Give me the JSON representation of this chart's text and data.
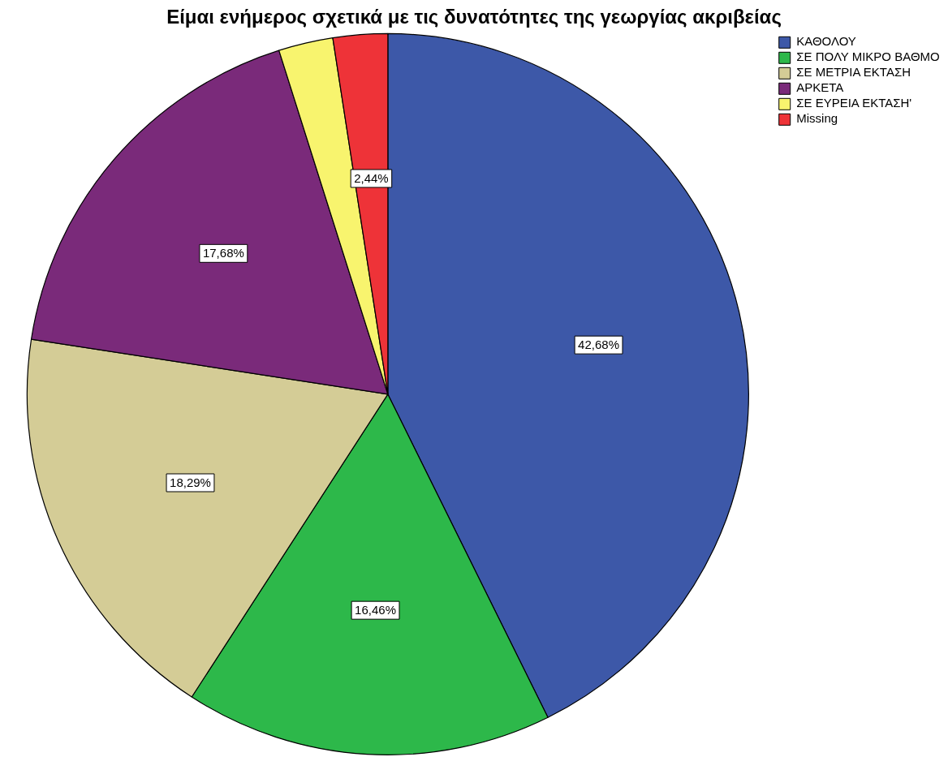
{
  "chart_data": {
    "type": "pie",
    "title": "Είμαι ενήμερος σχετικά με τις δυνατότητες της γεωργίας ακριβείας",
    "categories": [
      "ΚΑΘΟΛΟΥ",
      "ΣΕ ΠΟΛΥ ΜΙΚΡΟ ΒΑΘΜΟ",
      "ΣΕ ΜΕΤΡΙΑ ΕΚΤΑΣΗ",
      "ΑΡΚΕΤΑ",
      "ΣΕ ΕΥΡΕΙΑ ΕΚΤΑΣΗ'",
      "Missing"
    ],
    "values": [
      42.68,
      16.46,
      18.29,
      17.68,
      2.44,
      2.44
    ],
    "value_labels": [
      "42,68%",
      "16,46%",
      "18,29%",
      "17,68%",
      null,
      "2,44%"
    ],
    "colors": [
      "#3d58a8",
      "#2db84a",
      "#d4cc96",
      "#7a2a7a",
      "#f8f46e",
      "#ee3338"
    ],
    "legend": "top right"
  }
}
